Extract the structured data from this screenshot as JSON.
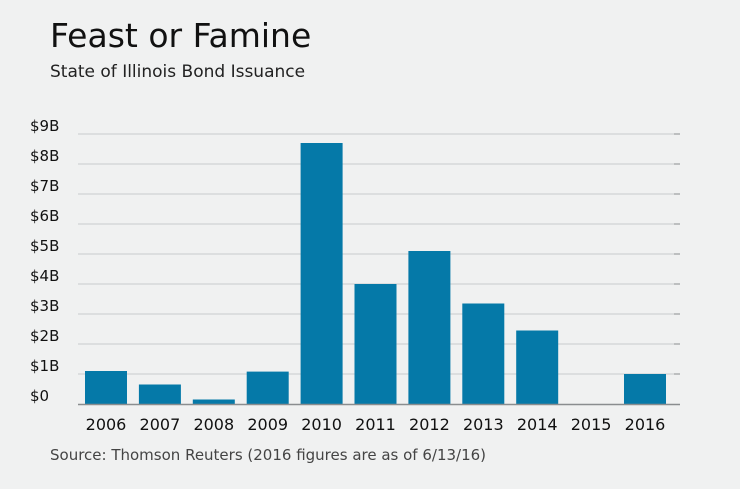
{
  "header": {
    "title": "Feast or Famine",
    "subtitle": "State of Illinois Bond Issuance"
  },
  "footer": {
    "source": "Source: Thomson Reuters (2016 figures are as of 6/13/16)"
  },
  "colors": {
    "bar": "#0579a8",
    "grid": "#c9cccd",
    "axis": "#8a8d8f",
    "background": "#f0f1f1"
  },
  "chart_data": {
    "type": "bar",
    "title": "Feast or Famine",
    "subtitle": "State of Illinois Bond Issuance",
    "xlabel": "",
    "ylabel": "",
    "categories": [
      "2006",
      "2007",
      "2008",
      "2009",
      "2010",
      "2011",
      "2012",
      "2013",
      "2014",
      "2015",
      "2016"
    ],
    "values": [
      1.1,
      0.65,
      0.15,
      1.08,
      8.7,
      4.0,
      5.1,
      3.35,
      2.45,
      0,
      1.0
    ],
    "unit": "billion USD",
    "ylim": [
      0,
      9
    ],
    "yticks": [
      0,
      1,
      2,
      3,
      4,
      5,
      6,
      7,
      8,
      9
    ],
    "ytick_labels": [
      "$0",
      "$1B",
      "$2B",
      "$3B",
      "$4B",
      "$5B",
      "$6B",
      "$7B",
      "$8B",
      "$9B"
    ],
    "grid": true,
    "legend": "none"
  }
}
